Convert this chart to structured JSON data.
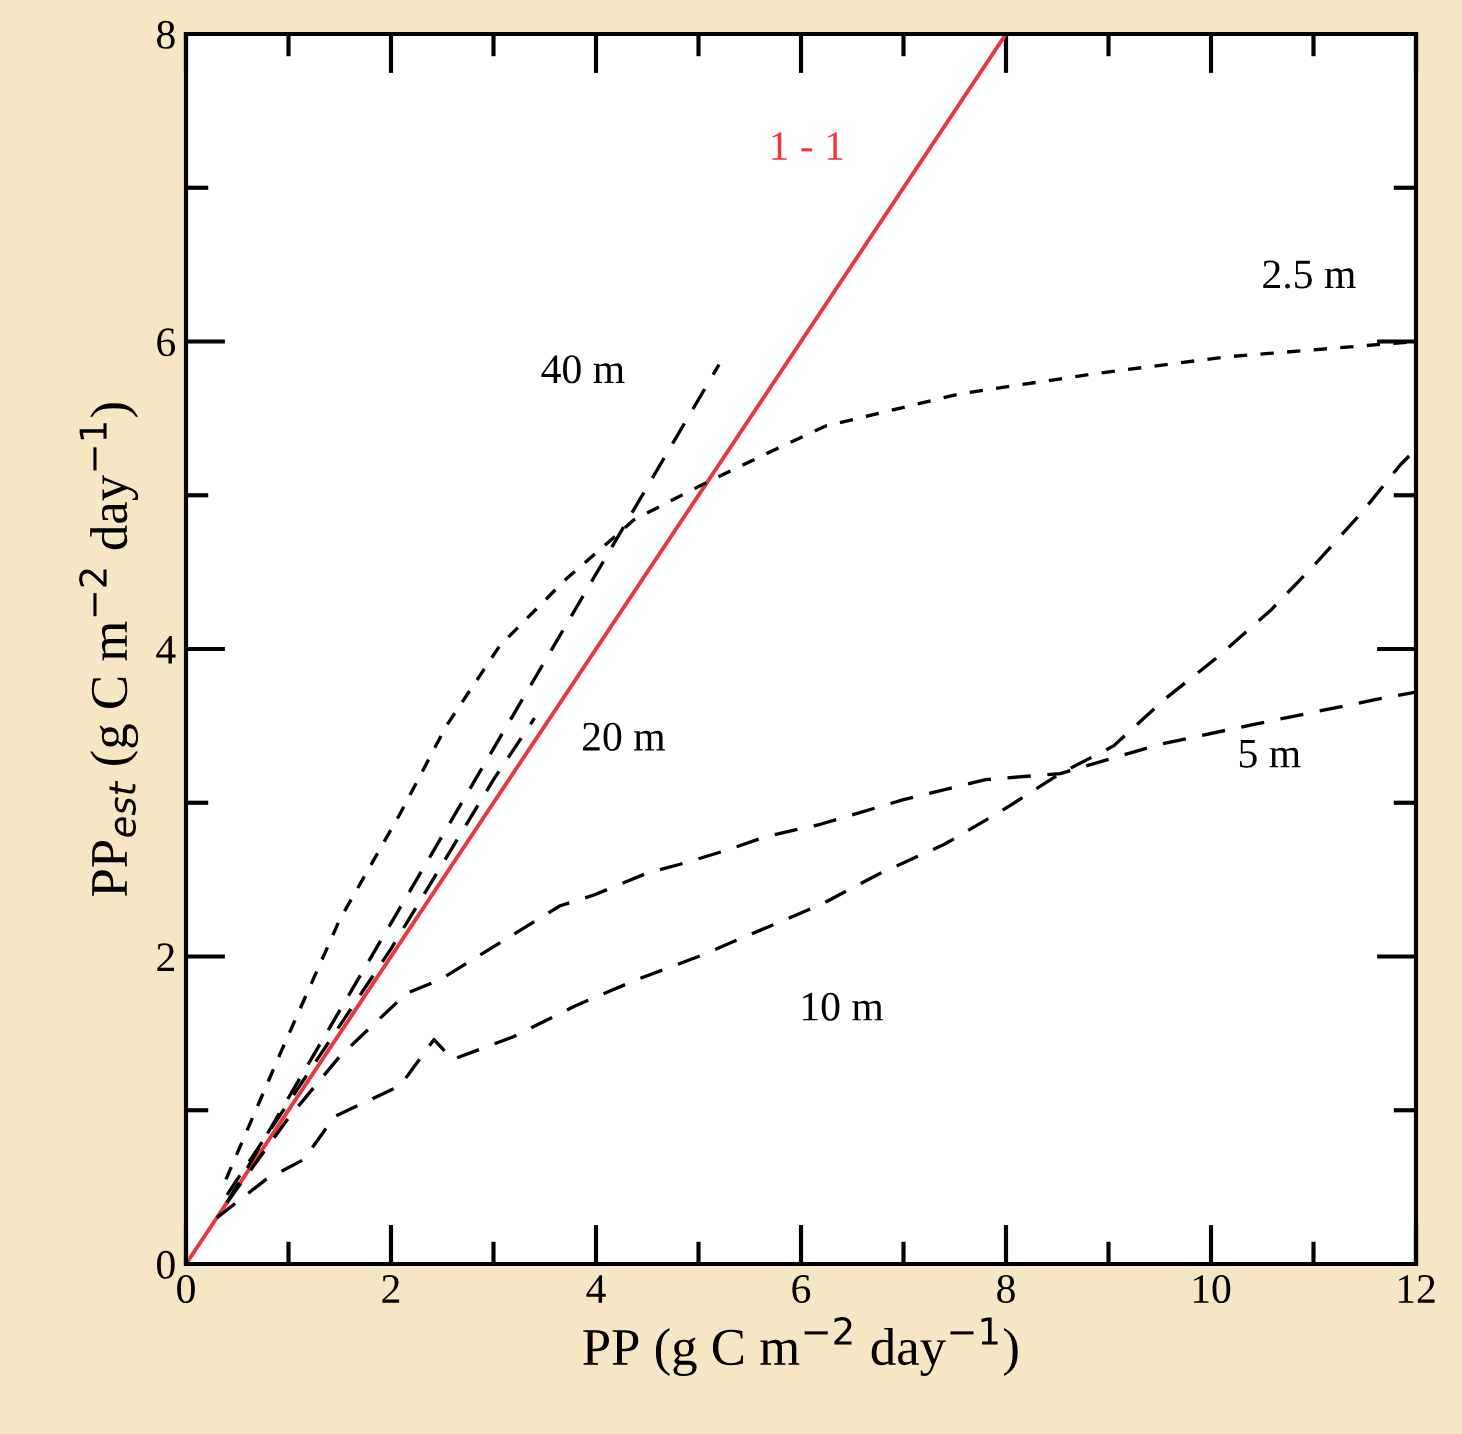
{
  "chart_data": {
    "type": "line",
    "xlabel": "PP (g C m$^{−2}$ day$^{−1}$)",
    "ylabel": "PP$_{est}$ (g C m$^{−2}$ day$^{−1}$)",
    "xlim": [
      0,
      12
    ],
    "ylim": [
      0,
      8
    ],
    "xticks": [
      0,
      2,
      4,
      6,
      8,
      10,
      12
    ],
    "yticks": [
      0,
      2,
      4,
      6,
      8
    ],
    "grid": false,
    "legend": false,
    "marker": "none",
    "series": [
      {
        "name": "1 - 1",
        "color": "#e8393f",
        "line_style": "solid",
        "x": [
          0,
          8
        ],
        "values": [
          0,
          8
        ]
      },
      {
        "name": "2.5 m",
        "color": "#000000",
        "line_style": "dotted",
        "x": [
          0.39,
          0.92,
          1.5,
          2.09,
          2.54,
          3.06,
          3.7,
          4.37,
          5.01,
          5.66,
          6.24,
          7.55,
          8.86,
          10.15,
          11.45,
          12
        ],
        "values": [
          0.55,
          1.37,
          2.24,
          2.93,
          3.5,
          4.02,
          4.45,
          4.84,
          5.06,
          5.27,
          5.45,
          5.66,
          5.79,
          5.9,
          5.97,
          6.0
        ]
      },
      {
        "name": "40 m",
        "color": "#000000",
        "line_style": "dashed",
        "x": [
          0.4,
          5.2
        ],
        "values": [
          0.4,
          5.85
        ]
      },
      {
        "name": "20 m",
        "color": "#000000",
        "line_style": "dashed",
        "x": [
          0.4,
          1.0,
          2.0,
          3.0,
          3.4
        ],
        "values": [
          0.45,
          1.05,
          2.05,
          3.15,
          3.55
        ]
      },
      {
        "name": "10 m",
        "color": "#000000",
        "line_style": "dashed",
        "x": [
          0.3,
          0.78,
          1.15,
          1.45,
          2.09,
          2.42,
          2.6,
          3.2,
          3.8,
          4.4,
          5.0,
          5.6,
          6.2,
          6.77,
          7.4,
          7.94,
          8.53,
          9.05,
          9.56,
          10.05,
          10.58,
          11.0,
          11.46,
          11.85,
          12
        ],
        "values": [
          0.3,
          0.55,
          0.68,
          0.96,
          1.16,
          1.46,
          1.33,
          1.48,
          1.68,
          1.85,
          2.0,
          2.17,
          2.34,
          2.54,
          2.73,
          2.94,
          3.19,
          3.37,
          3.68,
          3.94,
          4.25,
          4.54,
          4.88,
          5.2,
          5.3
        ]
      },
      {
        "name": "5 m",
        "color": "#000000",
        "line_style": "dashed",
        "x": [
          0.4,
          1.0,
          1.5,
          2.15,
          2.48,
          3.65,
          3.98,
          4.49,
          4.82,
          5.27,
          5.66,
          6.19,
          7.0,
          7.8,
          8.53,
          9.5,
          10.42,
          11.6,
          12
        ],
        "values": [
          0.4,
          0.95,
          1.35,
          1.76,
          1.85,
          2.33,
          2.4,
          2.54,
          2.6,
          2.69,
          2.78,
          2.86,
          3.02,
          3.15,
          3.19,
          3.38,
          3.51,
          3.67,
          3.72
        ]
      }
    ]
  }
}
